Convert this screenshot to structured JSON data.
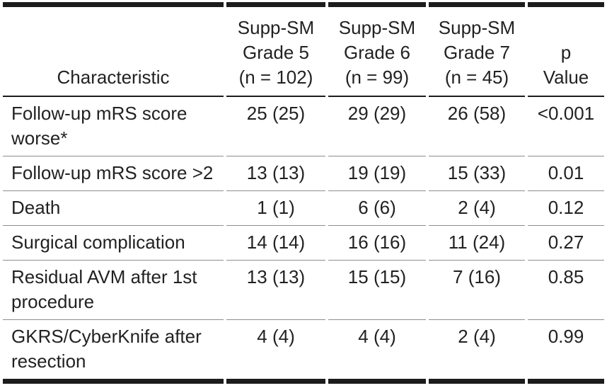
{
  "table": {
    "header": {
      "characteristic": "Characteristic",
      "group_cols": [
        {
          "line1": "Supp-SM",
          "line2": "Grade 5",
          "line3": "(n = 102)"
        },
        {
          "line1": "Supp-SM",
          "line2": "Grade 6",
          "line3": "(n = 99)"
        },
        {
          "line1": "Supp-SM",
          "line2": "Grade 7",
          "line3": "(n = 45)"
        }
      ],
      "p_col": {
        "line1": "p",
        "line2": "Value"
      }
    },
    "rows": [
      {
        "characteristic": "Follow-up mRS score worse*",
        "grade5": "25 (25)",
        "grade6": "29 (29)",
        "grade7": "26 (58)",
        "p": "<0.001"
      },
      {
        "characteristic": "Follow-up mRS score >2",
        "grade5": "13 (13)",
        "grade6": "19 (19)",
        "grade7": "15 (33)",
        "p": "0.01"
      },
      {
        "characteristic": "Death",
        "grade5": "1 (1)",
        "grade6": "6 (6)",
        "grade7": "2 (4)",
        "p": "0.12"
      },
      {
        "characteristic": "Surgical complication",
        "grade5": "14 (14)",
        "grade6": "16 (16)",
        "grade7": "11 (24)",
        "p": "0.27"
      },
      {
        "characteristic": "Residual AVM after 1st procedure",
        "grade5": "13 (13)",
        "grade6": "15 (15)",
        "grade7": "7 (16)",
        "p": "0.85"
      },
      {
        "characteristic": "GKRS/CyberKnife after resection",
        "grade5": "4 (4)",
        "grade6": "4 (4)",
        "grade7": "2 (4)",
        "p": "0.99"
      }
    ],
    "colors": {
      "text": "#222222",
      "heavy_rule": "#1c1c1c",
      "row_rule": "#8e8e8e",
      "background": "#ffffff"
    }
  }
}
